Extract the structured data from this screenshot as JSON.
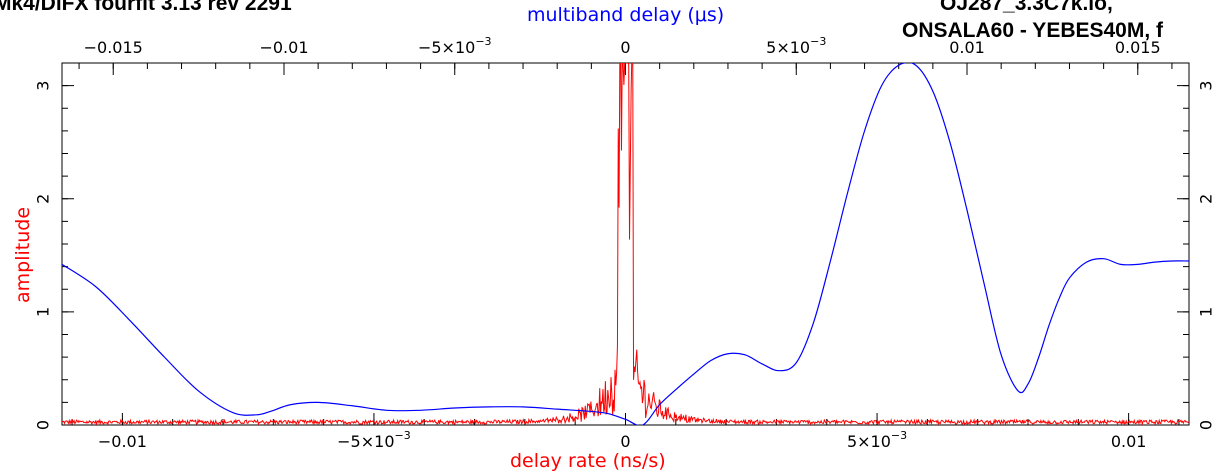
{
  "header": {
    "left_fragment": "Mk4/DiFX fourfit 3.13 rev 2291",
    "right_fragment_top": "OJ287_3.3C7k.lo, ",
    "right_fragment_bottom": "ONSALA60 - YEBES40M, f"
  },
  "chart_data": {
    "type": "line",
    "top_axis": {
      "label": "multiband delay (μs)",
      "range": [
        -0.0165,
        0.0165
      ],
      "ticks": [
        {
          "value": -0.015,
          "label": "−0.015"
        },
        {
          "value": -0.01,
          "label": "−0.01"
        },
        {
          "value": -0.005,
          "label": "−5×10",
          "exp": "−3"
        },
        {
          "value": 0,
          "label": "0"
        },
        {
          "value": 0.005,
          "label": "5×10",
          "exp": "−3"
        },
        {
          "value": 0.01,
          "label": "0.01"
        },
        {
          "value": 0.015,
          "label": "0.015"
        }
      ]
    },
    "bottom_axis": {
      "label": "delay rate (ns/s)",
      "range": [
        -0.0112,
        0.0112
      ],
      "ticks": [
        {
          "value": -0.01,
          "label": "−0.01"
        },
        {
          "value": -0.005,
          "label": "−5×10",
          "exp": "−3"
        },
        {
          "value": 0,
          "label": "0"
        },
        {
          "value": 0.005,
          "label": "5×10",
          "exp": "−3"
        },
        {
          "value": 0.01,
          "label": "0.01"
        }
      ]
    },
    "left_axis": {
      "label": "amplitude",
      "range": [
        0,
        3.2
      ],
      "ticks": [
        {
          "value": 0,
          "label": "0"
        },
        {
          "value": 1,
          "label": "1"
        },
        {
          "value": 2,
          "label": "2"
        },
        {
          "value": 3,
          "label": "3"
        }
      ]
    },
    "right_axis": {
      "label": "amplitude",
      "range": [
        0,
        3.2
      ],
      "ticks": [
        {
          "value": 0,
          "label": "0"
        },
        {
          "value": 1,
          "label": "1"
        },
        {
          "value": 2,
          "label": "2"
        },
        {
          "value": 3,
          "label": "3"
        }
      ]
    },
    "series": [
      {
        "axis": "top",
        "color": "#0000ff",
        "x": [
          -0.0165,
          -0.0155,
          -0.0145,
          -0.0135,
          -0.0125,
          -0.0115,
          -0.0108,
          -0.0104,
          -0.0098,
          -0.009,
          -0.008,
          -0.007,
          -0.006,
          -0.005,
          -0.004,
          -0.003,
          -0.002,
          -0.001,
          -0.0005,
          0.0,
          0.0005,
          0.001,
          0.0015,
          0.002,
          0.0025,
          0.003,
          0.0035,
          0.004,
          0.0045,
          0.005,
          0.0055,
          0.006,
          0.0065,
          0.007,
          0.0075,
          0.008,
          0.0085,
          0.009,
          0.0095,
          0.01,
          0.0105,
          0.011,
          0.0115,
          0.0118,
          0.0121,
          0.0124,
          0.0127,
          0.013,
          0.0135,
          0.014,
          0.0145,
          0.015,
          0.0155,
          0.016,
          0.0165
        ],
        "y": [
          1.42,
          1.22,
          0.92,
          0.6,
          0.3,
          0.11,
          0.09,
          0.12,
          0.18,
          0.2,
          0.17,
          0.13,
          0.13,
          0.15,
          0.16,
          0.16,
          0.14,
          0.12,
          0.1,
          0.05,
          0.0,
          0.18,
          0.32,
          0.45,
          0.57,
          0.63,
          0.62,
          0.54,
          0.48,
          0.55,
          0.9,
          1.45,
          2.05,
          2.6,
          3.0,
          3.18,
          3.18,
          2.95,
          2.5,
          1.9,
          1.25,
          0.62,
          0.3,
          0.37,
          0.6,
          0.88,
          1.12,
          1.3,
          1.44,
          1.47,
          1.42,
          1.42,
          1.44,
          1.45,
          1.45
        ]
      },
      {
        "axis": "bottom",
        "color": "#ff0000",
        "generated": "noise",
        "baseline": 0.04,
        "peak_x": 0.0,
        "peak_y": 3.2
      }
    ]
  }
}
